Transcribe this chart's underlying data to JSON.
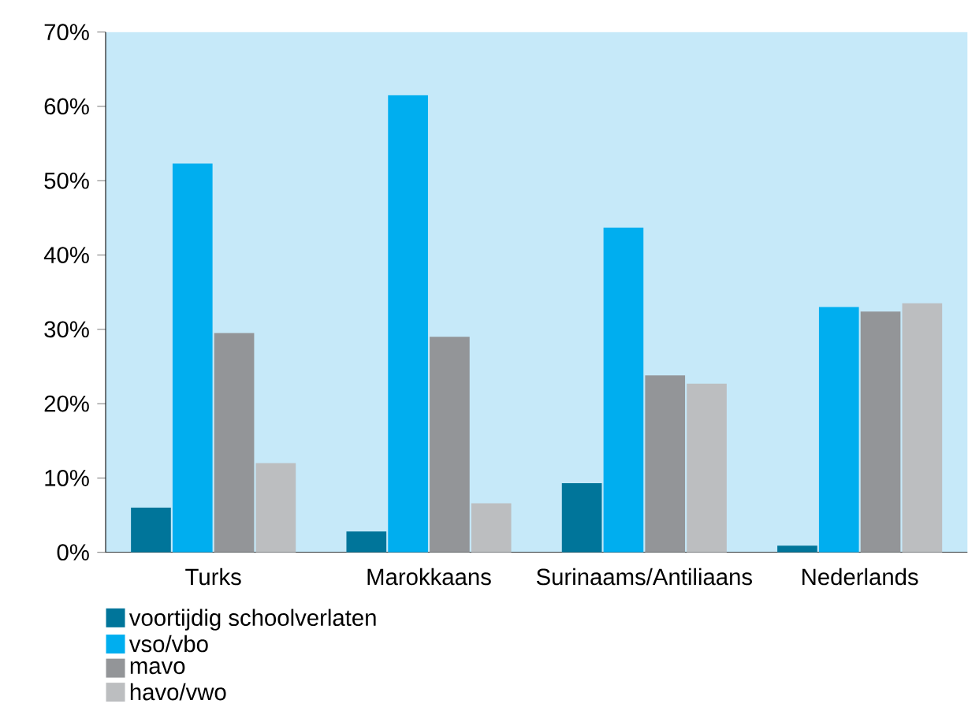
{
  "chart_data": {
    "type": "bar",
    "categories": [
      "Turks",
      "Marokkaans",
      "Surinaams/Antiliaans",
      "Nederlands"
    ],
    "series": [
      {
        "name": "voortijdig schoolverlaten",
        "color": "#00759a",
        "values": [
          6,
          2.8,
          9.3,
          0.9
        ]
      },
      {
        "name": "vso/vbo",
        "color": "#00aeef",
        "values": [
          52.3,
          61.5,
          43.7,
          33
        ]
      },
      {
        "name": "mavo",
        "color": "#939598",
        "values": [
          29.5,
          29,
          23.8,
          32.4
        ]
      },
      {
        "name": "havo/vwo",
        "color": "#bcbec0",
        "values": [
          12,
          6.6,
          22.7,
          33.5
        ]
      }
    ],
    "ylim": [
      0,
      70
    ],
    "yticks": [
      {
        "value": 0,
        "label": "0%"
      },
      {
        "value": 10,
        "label": "10%"
      },
      {
        "value": 20,
        "label": "20%"
      },
      {
        "value": 30,
        "label": "30%"
      },
      {
        "value": 40,
        "label": "40%"
      },
      {
        "value": 50,
        "label": "50%"
      },
      {
        "value": 60,
        "label": "60%"
      },
      {
        "value": 70,
        "label": "70%"
      }
    ],
    "grid": false,
    "legend": "bottom left"
  }
}
